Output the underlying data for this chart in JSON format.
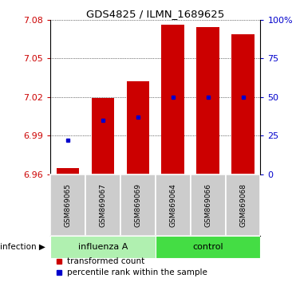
{
  "title": "GDS4825 / ILMN_1689625",
  "samples": [
    "GSM869065",
    "GSM869067",
    "GSM869069",
    "GSM869064",
    "GSM869066",
    "GSM869068"
  ],
  "groups": [
    "influenza A",
    "influenza A",
    "influenza A",
    "control",
    "control",
    "control"
  ],
  "group_labels": [
    "influenza A",
    "control"
  ],
  "influenza_color": "#b0f0b0",
  "control_color": "#44dd44",
  "sample_box_color": "#cccccc",
  "bar_bottom": 6.96,
  "transformed_counts": [
    6.965,
    7.019,
    7.032,
    7.076,
    7.074,
    7.069
  ],
  "percentile_ranks": [
    22,
    35,
    37,
    50,
    50,
    50
  ],
  "bar_color": "#cc0000",
  "dot_color": "#0000cc",
  "ylim_left": [
    6.96,
    7.08
  ],
  "ylim_right": [
    0,
    100
  ],
  "yticks_left": [
    6.96,
    6.99,
    7.02,
    7.05,
    7.08
  ],
  "yticks_right": [
    0,
    25,
    50,
    75,
    100
  ],
  "ytick_labels_right": [
    "0",
    "25",
    "50",
    "75",
    "100%"
  ],
  "legend_items": [
    "transformed count",
    "percentile rank within the sample"
  ],
  "legend_colors": [
    "#cc0000",
    "#0000cc"
  ],
  "bar_width": 0.65,
  "background_color": "#ffffff",
  "tick_color_left": "#cc0000",
  "tick_color_right": "#0000cc",
  "grid_color": "black",
  "grid_lw": 0.5
}
